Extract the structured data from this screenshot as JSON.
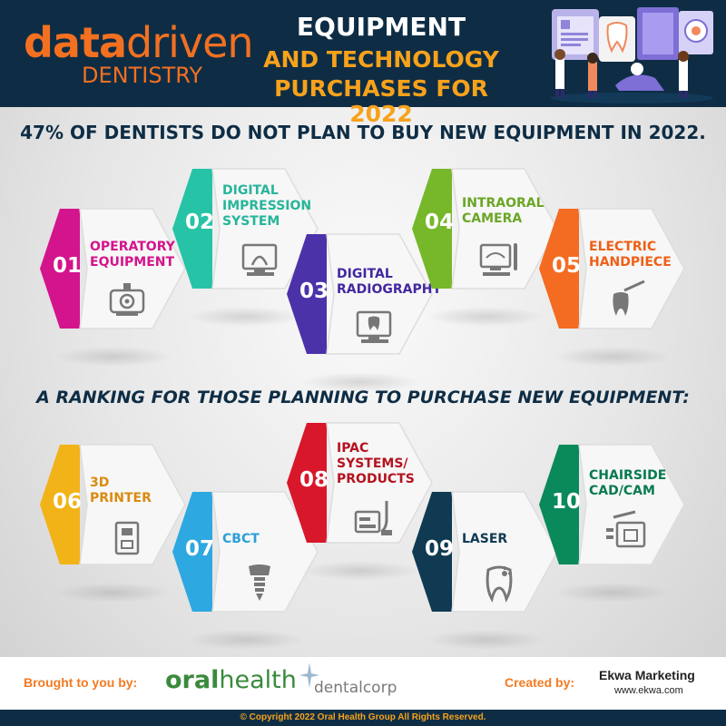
{
  "header": {
    "logo_bold": "data",
    "logo_thin": "driven",
    "logo_sub": "DENTISTRY",
    "title_line1": "EQUIPMENT",
    "title_line2": "AND TECHNOLOGY",
    "title_line3": "PURCHASES FOR 2022"
  },
  "section1": {
    "heading": "47% OF DENTISTS DO NOT PLAN TO BUY NEW EQUIPMENT IN 2022.",
    "tiles": [
      {
        "num": "01",
        "line1": "OPERATORY",
        "line2": "EQUIPMENT",
        "line3": "",
        "color": "#d4148c",
        "text_color": "#d4148c",
        "icon": "operatory-chair-icon"
      },
      {
        "num": "02",
        "line1": "DIGITAL",
        "line2": "IMPRESSION",
        "line3": "SYSTEM",
        "color": "#27c3a7",
        "text_color": "#27b59b",
        "icon": "impression-scanner-icon"
      },
      {
        "num": "03",
        "line1": "DIGITAL",
        "line2": "RADIOGRAPHY",
        "line3": "",
        "color": "#4b32a8",
        "text_color": "#4228a0",
        "icon": "xray-monitor-icon"
      },
      {
        "num": "04",
        "line1": "INTRAORAL",
        "line2": "CAMERA",
        "line3": "",
        "color": "#76b82a",
        "text_color": "#6aa626",
        "icon": "intraoral-camera-icon"
      },
      {
        "num": "05",
        "line1": "ELECTRIC",
        "line2": "HANDPIECE",
        "line3": "",
        "color": "#f36c21",
        "text_color": "#ee5f16",
        "icon": "handpiece-tooth-icon"
      }
    ]
  },
  "section2": {
    "heading": "A RANKING FOR THOSE PLANNING TO PURCHASE NEW EQUIPMENT:",
    "tiles": [
      {
        "num": "06",
        "line1": "3D",
        "line2": "PRINTER",
        "line3": "",
        "color": "#f2b318",
        "text_color": "#d98b10",
        "icon": "printer-3d-icon"
      },
      {
        "num": "07",
        "line1": "CBCT",
        "line2": "",
        "line3": "",
        "color": "#2ea8e0",
        "text_color": "#2a9fd8",
        "icon": "dental-implant-icon"
      },
      {
        "num": "08",
        "line1": "IPAC",
        "line2": "SYSTEMS/",
        "line3": "PRODUCTS",
        "color": "#d8172a",
        "text_color": "#b5121f",
        "icon": "sterilizer-icon"
      },
      {
        "num": "09",
        "line1": "LASER",
        "line2": "",
        "line3": "",
        "color": "#0f3a52",
        "text_color": "#0f3a52",
        "icon": "laser-tooth-icon"
      },
      {
        "num": "10",
        "line1": "CHAIRSIDE",
        "line2": "CAD/CAM",
        "line3": "",
        "color": "#0a8a5a",
        "text_color": "#077a4e",
        "icon": "cad-cam-mill-icon"
      }
    ]
  },
  "footer": {
    "brought": "Brought to you by:",
    "oral_bold": "oral",
    "oral_thin": "health",
    "dentalcorp": "dentalcorp",
    "created": "Created by:",
    "ekwa": "Ekwa Marketing",
    "ekwa_url": "www.ekwa.com",
    "copyright": "© Copyright 2022 Oral Health Group All Rights Reserved."
  }
}
